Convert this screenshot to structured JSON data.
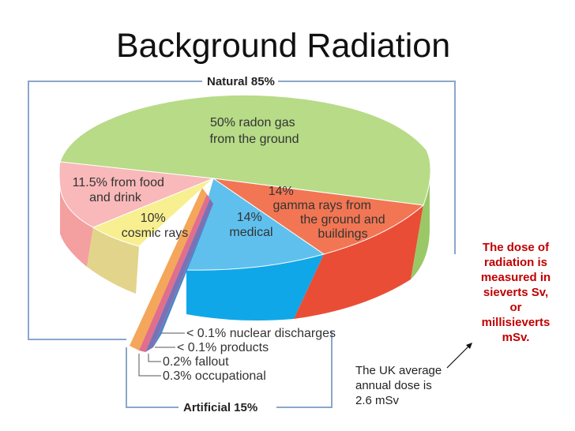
{
  "page": {
    "title": "Background Radiation"
  },
  "chart_data": {
    "type": "pie",
    "groups": [
      {
        "name": "Natural 85%",
        "value": 85
      },
      {
        "name": "Artificial 15%",
        "value": 15
      }
    ],
    "slices": [
      {
        "group": "Natural",
        "value": 50,
        "label_lines": [
          "50% radon gas",
          "from the ground"
        ],
        "color": "#b7db87"
      },
      {
        "group": "Natural",
        "value": 14,
        "label_lines": [
          "14%",
          "gamma rays from",
          "the ground and",
          "buildings"
        ],
        "color": "#f27653"
      },
      {
        "group": "Artificial",
        "value": 14,
        "label_lines": [
          "14%",
          "medical"
        ],
        "color": "#5fc0ee"
      },
      {
        "group": "Natural",
        "value": 10,
        "label_lines": [
          "10%",
          "cosmic rays"
        ],
        "color": "#f7ef90"
      },
      {
        "group": "Natural",
        "value": 11.5,
        "label_lines": [
          "11.5% from food",
          "and drink"
        ],
        "color": "#f9b8b9"
      },
      {
        "group": "Artificial",
        "value": 0.1,
        "label_lines": [
          "< 0.1% nuclear discharges"
        ],
        "color": "#4a86c8"
      },
      {
        "group": "Artificial",
        "value": 0.1,
        "label_lines": [
          "< 0.1% products"
        ],
        "color": "#7b72b6"
      },
      {
        "group": "Artificial",
        "value": 0.2,
        "label_lines": [
          "0.2% fallout"
        ],
        "color": "#e06e8c"
      },
      {
        "group": "Artificial",
        "value": 0.3,
        "label_lines": [
          "0.3% occupational"
        ],
        "color": "#f4a65a"
      }
    ]
  },
  "notes": {
    "units_lines": [
      "The dose of",
      "radiation is",
      "measured in",
      "sieverts Sv,",
      "or",
      "millisieverts",
      "mSv."
    ],
    "annual_dose_lines": [
      "The UK average",
      "annual dose is",
      "2.6 mSv"
    ]
  }
}
